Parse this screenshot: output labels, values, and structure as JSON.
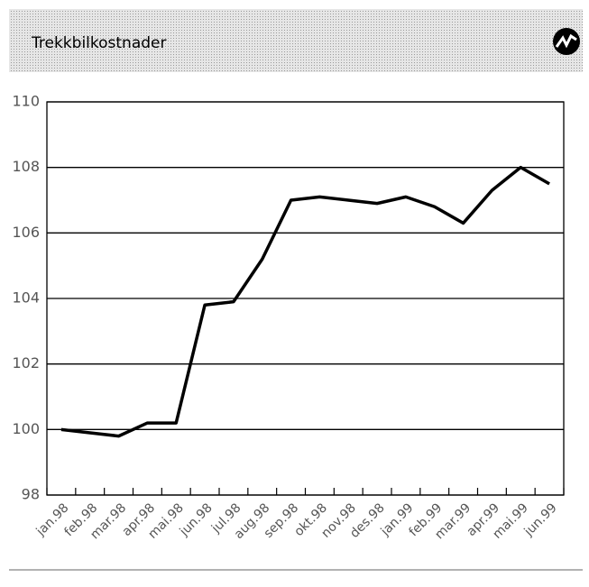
{
  "chart_data": {
    "type": "line",
    "title": "Trekkbilkostnader",
    "categories": [
      "jan.98",
      "feb.98",
      "mar.98",
      "apr.98",
      "mai.98",
      "jun.98",
      "jul.98",
      "aug.98",
      "sep.98",
      "okt.98",
      "nov.98",
      "des.98",
      "jan.99",
      "feb.99",
      "mar.99",
      "apr.99",
      "mai.99",
      "jun.99"
    ],
    "values": [
      100.0,
      99.9,
      99.8,
      100.2,
      100.2,
      103.8,
      103.9,
      105.2,
      107.0,
      107.1,
      107.0,
      106.9,
      107.1,
      106.8,
      106.3,
      107.3,
      108.0,
      107.5
    ],
    "color": "#000000",
    "ylim": [
      98,
      110
    ],
    "yticks": [
      98,
      100,
      102,
      104,
      106,
      108,
      110
    ],
    "grid": true
  }
}
